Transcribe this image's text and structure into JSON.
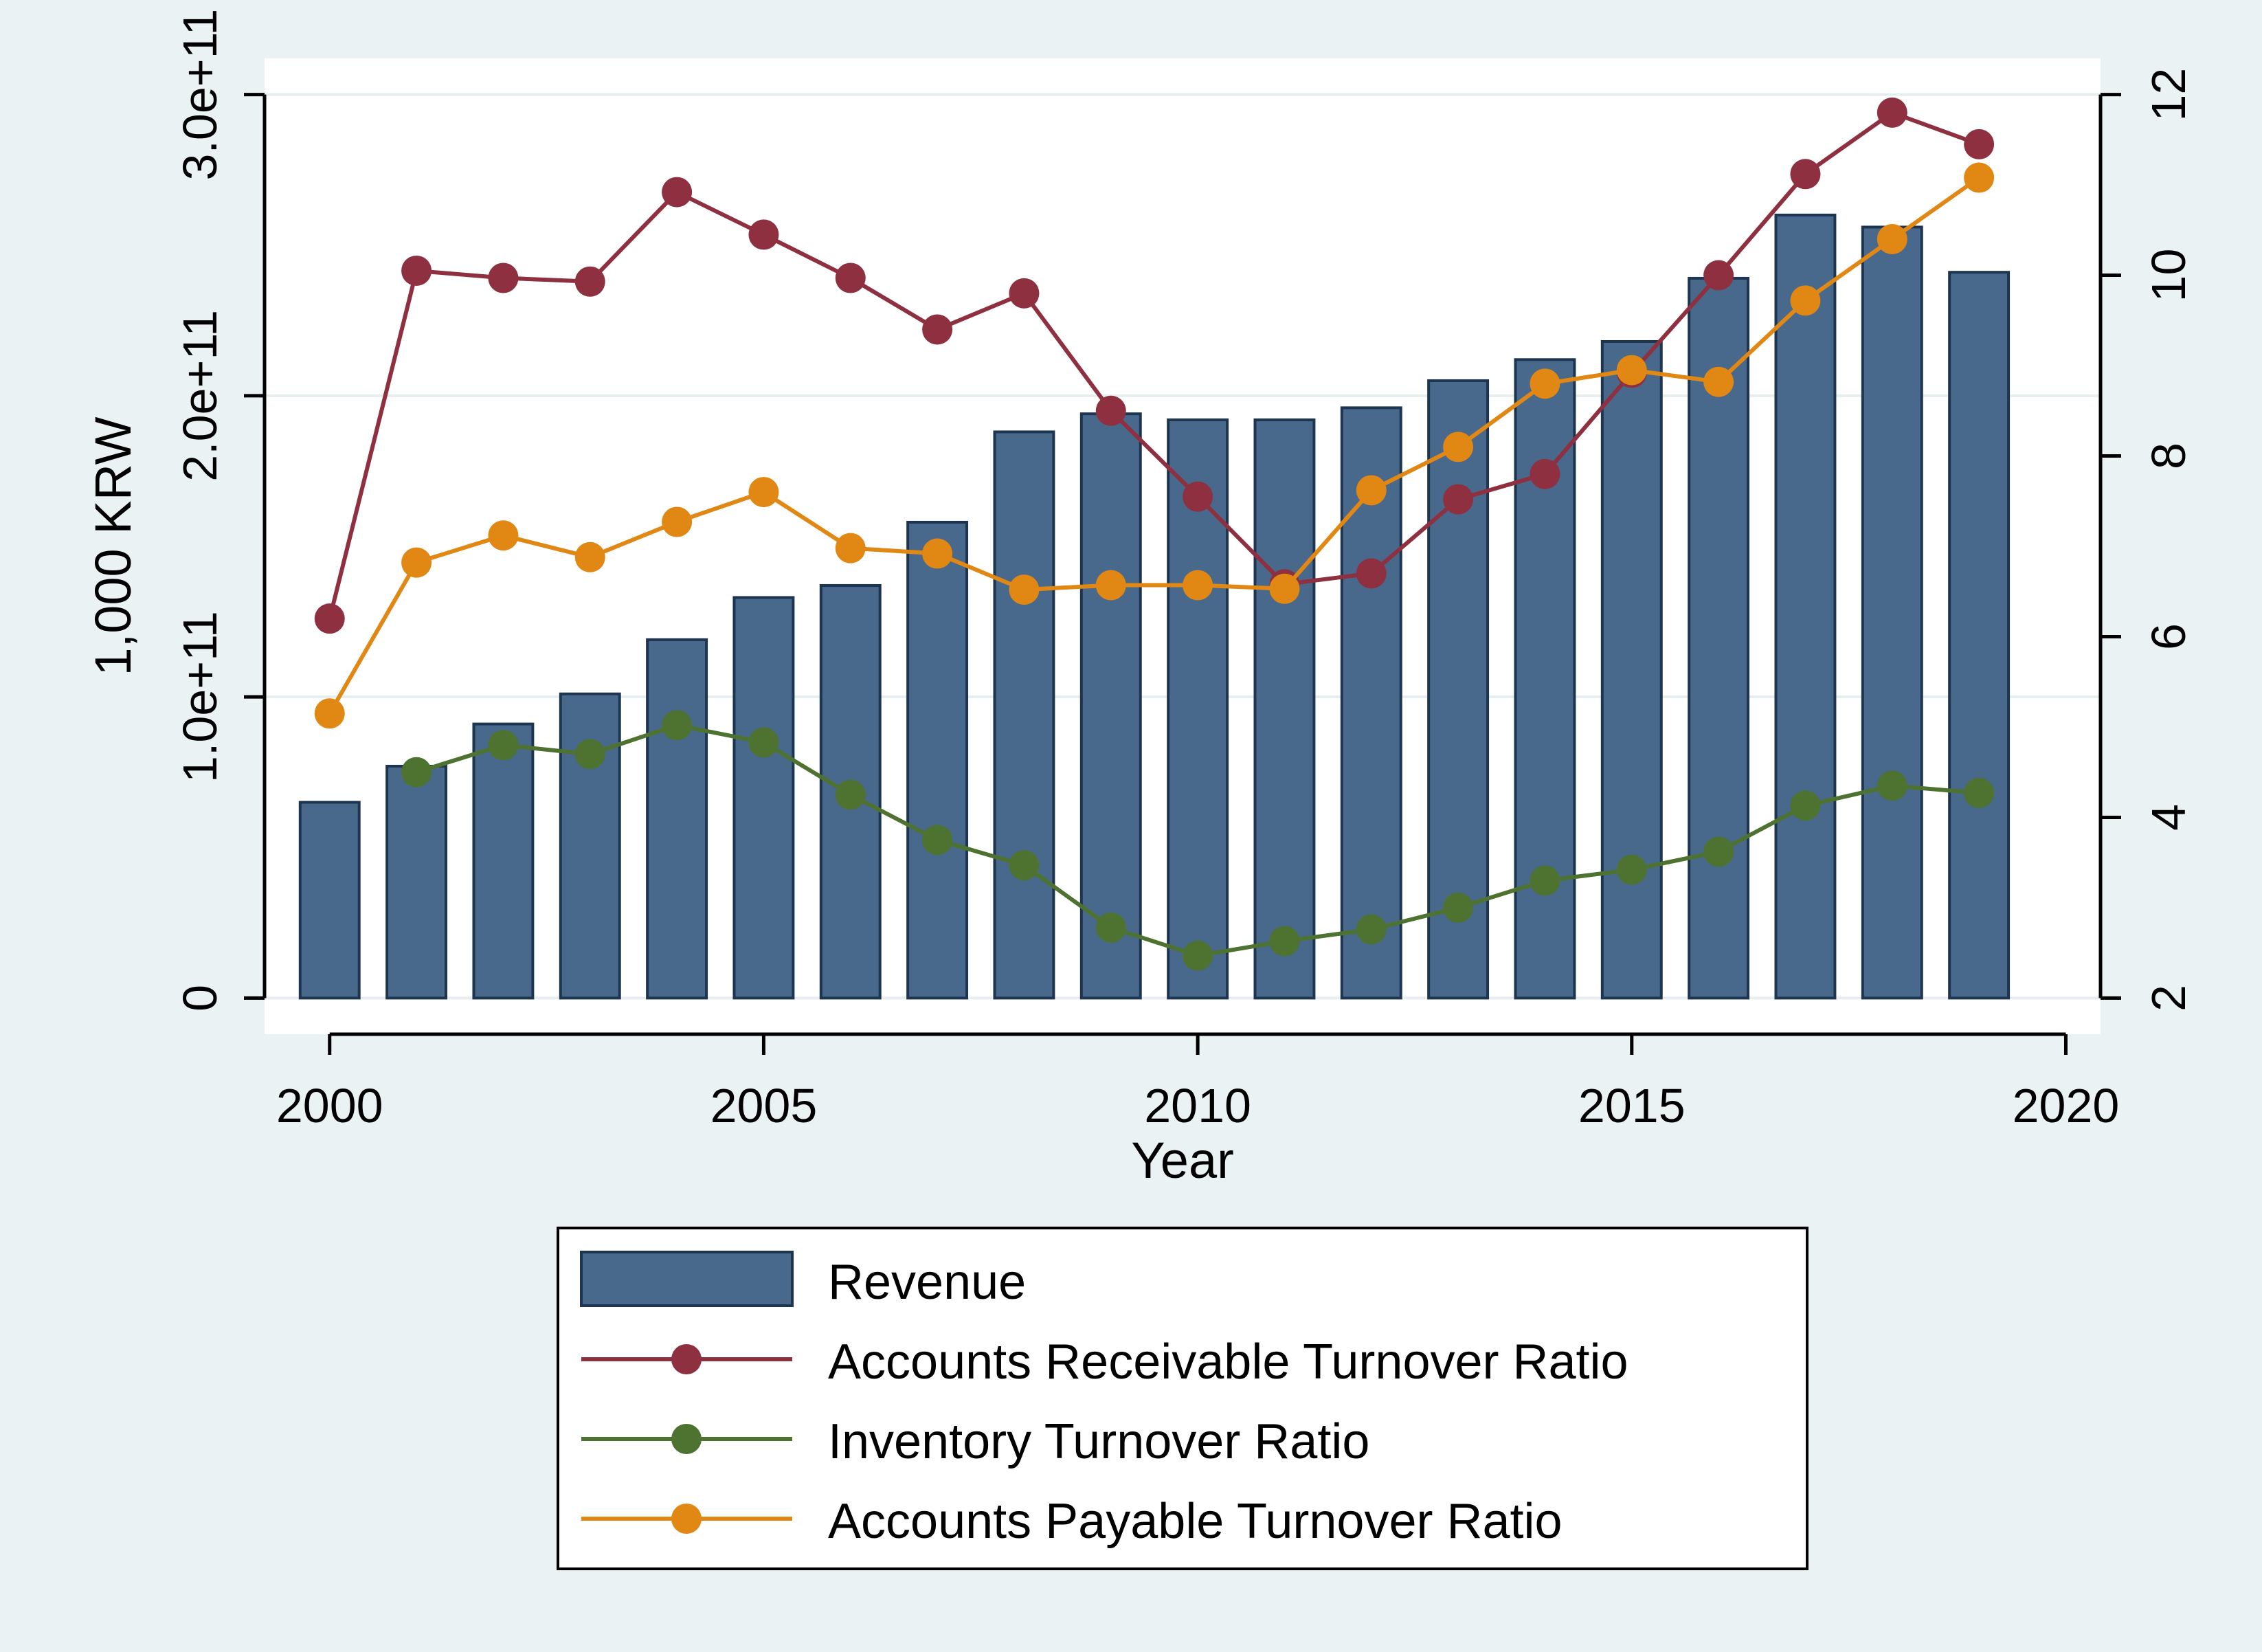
{
  "chart_data": {
    "type": "bar",
    "xlabel": "Year",
    "ylabel_left": "1,000 KRW",
    "x_ticks": [
      2000,
      2005,
      2010,
      2015,
      2020
    ],
    "xlim": [
      1999.25,
      2020.4
    ],
    "y_left_ticks": [
      "0",
      "1.0e+11",
      "2.0e+11",
      "3.0e+11"
    ],
    "y_left_tick_values": [
      0,
      100000000000,
      200000000000,
      300000000000
    ],
    "ylim_left": [
      -12000000000,
      312000000000
    ],
    "y_right_ticks": [
      "2",
      "4",
      "6",
      "8",
      "10",
      "12"
    ],
    "y_right_tick_values": [
      2,
      4,
      6,
      8,
      10,
      12
    ],
    "ylim_right": [
      1.6,
      12.4
    ],
    "grid": "horizontal",
    "legend_position": "bottom",
    "years": [
      2000,
      2001,
      2002,
      2003,
      2004,
      2005,
      2006,
      2007,
      2008,
      2009,
      2010,
      2011,
      2012,
      2013,
      2014,
      2015,
      2016,
      2017,
      2018,
      2019
    ],
    "bars": {
      "name": "Revenue",
      "axis": "left",
      "color": "#48698c",
      "values": [
        65000000000,
        77000000000,
        91000000000,
        101000000000,
        119000000000,
        133000000000,
        137000000000,
        158000000000,
        188000000000,
        194000000000,
        192000000000,
        192000000000,
        196000000000,
        205000000000,
        212000000000,
        218000000000,
        239000000000,
        260000000000,
        256000000000,
        241000000000
      ]
    },
    "series": [
      {
        "name": "Accounts Receivable Turnover Ratio",
        "axis": "right",
        "color": "#8e3040",
        "values": [
          6.2,
          10.05,
          9.97,
          9.93,
          10.92,
          10.45,
          9.97,
          9.4,
          9.8,
          8.5,
          7.55,
          6.58,
          6.7,
          7.52,
          7.8,
          8.92,
          10.0,
          11.12,
          11.8,
          11.45
        ]
      },
      {
        "name": "Inventory Turnover Ratio",
        "axis": "right",
        "color": "#4e7331",
        "values": [
          null,
          4.5,
          4.8,
          4.7,
          5.02,
          4.83,
          4.25,
          3.75,
          3.47,
          2.78,
          2.47,
          2.63,
          2.76,
          3.0,
          3.3,
          3.42,
          3.62,
          4.13,
          4.35,
          4.27
        ]
      },
      {
        "name": "Accounts Payable Turnover Ratio",
        "axis": "right",
        "color": "#e08714",
        "values": [
          5.15,
          6.82,
          7.12,
          6.88,
          7.27,
          7.6,
          6.98,
          6.92,
          6.52,
          6.57,
          6.57,
          6.53,
          7.62,
          8.1,
          8.8,
          8.95,
          8.82,
          9.72,
          10.4,
          11.08
        ]
      }
    ]
  }
}
